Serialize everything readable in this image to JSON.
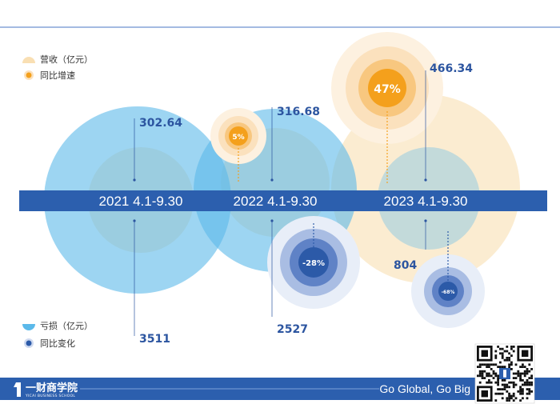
{
  "chart_data": {
    "type": "bubble",
    "title": "",
    "categories": [
      "2021 4.1-9.30",
      "2022 4.1-9.30",
      "2023 4.1-9.30"
    ],
    "series": [
      {
        "name": "营收（亿元）",
        "unit": "亿元",
        "values": [
          302.64,
          316.68,
          466.34
        ],
        "color": "#f9dfb3"
      },
      {
        "name": "亏损（亿元）",
        "unit": "亿元",
        "values": [
          3511,
          2527,
          804
        ],
        "color": "#5bb9ea"
      }
    ],
    "growth": {
      "revenue": {
        "name": "同比增速",
        "labels": [
          "",
          "5%",
          "47%"
        ],
        "values": [
          null,
          5,
          47
        ],
        "color": "#f4a01c"
      },
      "loss": {
        "name": "同比变化",
        "labels": [
          "",
          "-28%",
          "-68%"
        ],
        "values": [
          null,
          -28,
          -68
        ],
        "color": "#2c5aa8"
      }
    },
    "legend": {
      "placement": "left"
    }
  },
  "footer": {
    "brand": "一财商学院",
    "brand_sub": "YICAI BUSINESS SCHOOL",
    "slogan": "Go Global, Go Big"
  },
  "colors": {
    "band": "#2c5fae",
    "revenue": "#f9dfb3",
    "loss": "#5bb9ea",
    "growth_pos": "#f4a01c",
    "growth_neg": "#2c5aa8",
    "value_text": "#2c55a0"
  }
}
